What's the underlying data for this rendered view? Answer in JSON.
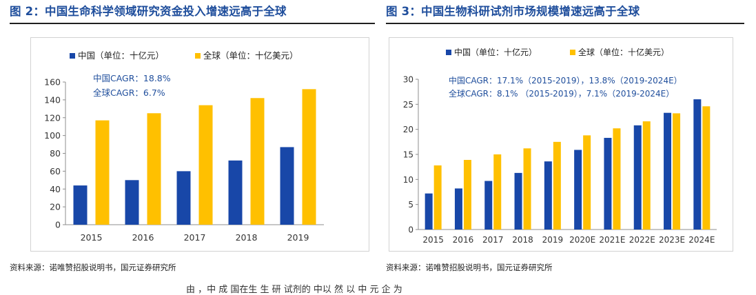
{
  "figures": {
    "left_title": "图 2：中国生命科学领域研究资金投入增速远高于全球",
    "right_title": "图 3：中国生物科研试剂市场规模增速远高于全球",
    "left_source": "资料来源：诺唯赞招股说明书，国元证券研究所",
    "right_source": "资料来源：诺唯赞招股说明书，国元证券研究所"
  },
  "colors": {
    "china": "#1847a8",
    "global": "#ffc000",
    "title": "#1f4e9c",
    "annotation": "#1f4e9c"
  },
  "chart_data": [
    {
      "type": "bar",
      "title": "图 2：中国生命科学领域研究资金投入增速远高于全球",
      "categories": [
        "2015",
        "2016",
        "2017",
        "2018",
        "2019"
      ],
      "series": [
        {
          "name": "中国（单位：十亿元）",
          "values": [
            44,
            50,
            60,
            72,
            87
          ]
        },
        {
          "name": "全球（单位：十亿美元）",
          "values": [
            117,
            125,
            134,
            142,
            152
          ]
        }
      ],
      "yticks": [
        "0",
        "20",
        "40",
        "60",
        "80",
        "100",
        "120",
        "140",
        "160"
      ],
      "ylim": [
        0,
        160
      ],
      "legend": "top",
      "grid": false,
      "annotations": [
        "中国CAGR：18.8%",
        "全球CAGR：6.7%"
      ]
    },
    {
      "type": "bar",
      "title": "图 3：中国生物科研试剂市场规模增速远高于全球",
      "categories": [
        "2015",
        "2016",
        "2017",
        "2018",
        "2019",
        "2020E",
        "2021E",
        "2022E",
        "2023E",
        "2024E"
      ],
      "series": [
        {
          "name": "中国（单位：十亿元）",
          "values": [
            7.2,
            8.2,
            9.7,
            11.3,
            13.6,
            15.9,
            18.3,
            20.8,
            23.3,
            26.0
          ]
        },
        {
          "name": "全球（单位：十亿美元）",
          "values": [
            12.8,
            13.9,
            15.0,
            16.2,
            17.5,
            18.8,
            20.2,
            21.6,
            23.2,
            24.6
          ]
        }
      ],
      "yticks": [
        "0",
        "5",
        "10",
        "15",
        "20",
        "25",
        "30"
      ],
      "ylim": [
        0,
        30
      ],
      "legend": "top",
      "grid": false,
      "annotations": [
        "中国CAGR：17.1%（2015-2019），13.8%（2019-2024E）",
        "全球CAGR：8.1% （2015-2019），7.1%（2019-2024E）"
      ]
    }
  ],
  "bottom_text": "由 ，中 成 国在生 生 研 试剂的 中以 然 以 中 元 企 为"
}
